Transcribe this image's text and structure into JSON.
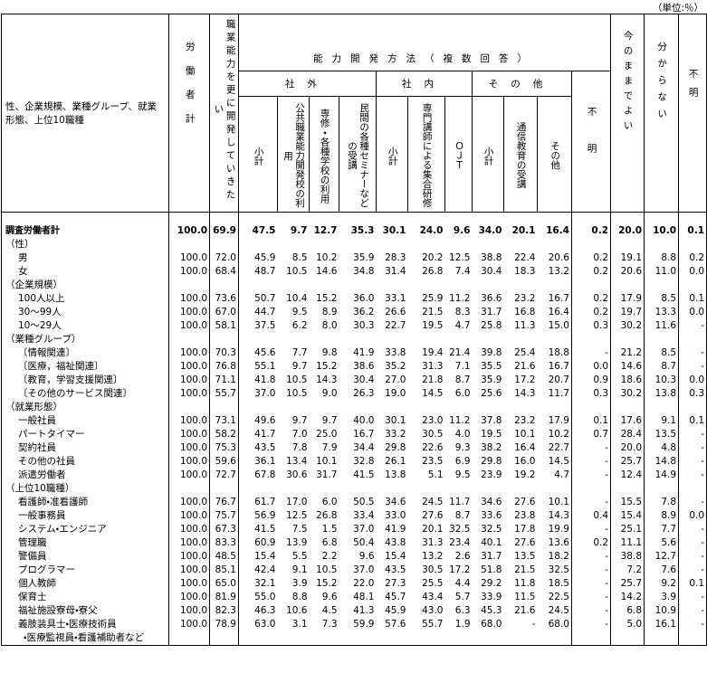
{
  "unit": "（単位:％）",
  "table": {
    "stub_header": "性、企業規模、業種グループ、就業形態、上位10職種",
    "group": "能力開発方法（複数回答）",
    "subgroups": [
      "社外",
      "社内",
      "その他"
    ],
    "columns": [
      "労働者計",
      "職業能力を更に開発していきたい",
      "小計",
      "公共職業能力開発校の利用",
      "専修・各種学校の利用",
      "民間の各種セミナーなどの受講",
      "小計",
      "専門講師による集合研修",
      "ＯＪＴ",
      "小計",
      "通信教育の受講",
      "その他",
      "不明",
      "今のままでよい",
      "分からない",
      "不明"
    ],
    "rows": [
      {
        "label": "調査労働者計",
        "values": [
          "100.0",
          "69.9",
          "47.5",
          "9.7",
          "12.7",
          "35.3",
          "30.1",
          "24.0",
          "9.6",
          "34.0",
          "20.1",
          "16.4",
          "0.2",
          "20.0",
          "10.0",
          "0.1"
        ]
      },
      {
        "label": "（性）"
      },
      {
        "label": "男",
        "values": [
          "100.0",
          "72.0",
          "45.9",
          "8.5",
          "10.2",
          "35.9",
          "28.3",
          "20.2",
          "12.5",
          "38.8",
          "22.4",
          "20.6",
          "0.2",
          "19.1",
          "8.8",
          "0.2"
        ]
      },
      {
        "label": "女",
        "values": [
          "100.0",
          "68.4",
          "48.7",
          "10.5",
          "14.6",
          "34.8",
          "31.4",
          "26.8",
          "7.4",
          "30.4",
          "18.3",
          "13.2",
          "0.2",
          "20.6",
          "11.0",
          "0.0"
        ]
      },
      {
        "label": "（企業規模）"
      },
      {
        "label": "100人以上",
        "values": [
          "100.0",
          "73.6",
          "50.7",
          "10.4",
          "15.2",
          "36.0",
          "33.1",
          "25.9",
          "11.2",
          "36.6",
          "23.2",
          "16.7",
          "0.2",
          "17.9",
          "8.5",
          "0.1"
        ]
      },
      {
        "label": "30～99人",
        "values": [
          "100.0",
          "67.0",
          "44.7",
          "9.5",
          "8.9",
          "36.2",
          "26.6",
          "21.5",
          "8.3",
          "31.7",
          "16.8",
          "16.4",
          "0.2",
          "19.7",
          "13.3",
          "0.0"
        ]
      },
      {
        "label": "10～29人",
        "values": [
          "100.0",
          "58.1",
          "37.5",
          "6.2",
          "8.0",
          "30.3",
          "22.7",
          "19.5",
          "4.7",
          "25.8",
          "11.3",
          "15.0",
          "0.3",
          "30.2",
          "11.6",
          "-"
        ]
      },
      {
        "label": "（業種グループ）"
      },
      {
        "label": "〔情報関連〕",
        "values": [
          "100.0",
          "70.3",
          "45.6",
          "7.7",
          "9.8",
          "41.9",
          "33.8",
          "19.4",
          "21.4",
          "39.8",
          "25.4",
          "18.8",
          "-",
          "21.2",
          "8.5",
          "-"
        ]
      },
      {
        "label": "〔医療，福祉関連〕",
        "values": [
          "100.0",
          "76.8",
          "55.1",
          "9.7",
          "15.2",
          "38.6",
          "35.2",
          "31.3",
          "7.1",
          "35.5",
          "21.6",
          "16.7",
          "0.0",
          "14.6",
          "8.7",
          "-"
        ]
      },
      {
        "label": "〔教育，学習支援関連〕",
        "values": [
          "100.0",
          "71.1",
          "41.8",
          "10.5",
          "14.3",
          "30.4",
          "27.0",
          "21.8",
          "8.7",
          "35.9",
          "17.2",
          "20.7",
          "0.9",
          "18.6",
          "10.3",
          "0.0"
        ]
      },
      {
        "label": "〔その他のサービス関連〕",
        "values": [
          "100.0",
          "55.7",
          "37.0",
          "10.5",
          "9.0",
          "26.3",
          "19.0",
          "14.5",
          "6.0",
          "25.6",
          "14.3",
          "11.7",
          "0.3",
          "30.2",
          "13.8",
          "0.3"
        ]
      },
      {
        "label": "（就業形態）"
      },
      {
        "label": "一般社員",
        "values": [
          "100.0",
          "73.1",
          "49.6",
          "9.7",
          "9.7",
          "40.0",
          "30.1",
          "23.0",
          "11.2",
          "37.8",
          "23.2",
          "17.9",
          "0.1",
          "17.6",
          "9.1",
          "0.1"
        ]
      },
      {
        "label": "パートタイマー",
        "values": [
          "100.0",
          "58.2",
          "41.7",
          "7.0",
          "25.0",
          "16.7",
          "33.2",
          "30.5",
          "4.0",
          "19.5",
          "10.1",
          "10.2",
          "0.7",
          "28.4",
          "13.5",
          "-"
        ]
      },
      {
        "label": "契約社員",
        "values": [
          "100.0",
          "75.3",
          "43.5",
          "7.8",
          "7.9",
          "34.4",
          "29.8",
          "22.6",
          "9.3",
          "38.2",
          "16.4",
          "22.7",
          "-",
          "20.0",
          "4.8",
          "-"
        ]
      },
      {
        "label": "その他の社員",
        "values": [
          "100.0",
          "59.6",
          "36.1",
          "13.4",
          "10.1",
          "32.8",
          "26.1",
          "23.5",
          "6.9",
          "29.8",
          "16.0",
          "14.5",
          "-",
          "25.7",
          "14.8",
          "-"
        ]
      },
      {
        "label": "派遣労働者",
        "values": [
          "100.0",
          "72.7",
          "67.8",
          "30.6",
          "31.7",
          "41.5",
          "13.8",
          "5.1",
          "9.5",
          "23.9",
          "19.2",
          "4.7",
          "-",
          "12.4",
          "14.9",
          "-"
        ]
      },
      {
        "label": "（上位10職種）"
      },
      {
        "label": "看護師・准看護師",
        "values": [
          "100.0",
          "76.7",
          "61.7",
          "17.0",
          "6.0",
          "50.5",
          "34.6",
          "24.5",
          "11.7",
          "34.6",
          "27.6",
          "10.1",
          "-",
          "15.5",
          "7.8",
          "-"
        ]
      },
      {
        "label": "一般事務員",
        "values": [
          "100.0",
          "75.7",
          "56.9",
          "12.5",
          "26.8",
          "33.4",
          "33.0",
          "27.6",
          "8.7",
          "33.6",
          "23.8",
          "14.3",
          "0.4",
          "15.4",
          "8.9",
          "0.0"
        ]
      },
      {
        "label": "システム・エンジニア",
        "values": [
          "100.0",
          "67.3",
          "41.5",
          "7.5",
          "1.5",
          "37.0",
          "41.9",
          "20.1",
          "32.5",
          "32.5",
          "17.8",
          "19.9",
          "-",
          "25.1",
          "7.7",
          "-"
        ]
      },
      {
        "label": "管理職",
        "values": [
          "100.0",
          "83.3",
          "60.9",
          "13.9",
          "6.8",
          "50.4",
          "43.8",
          "31.3",
          "23.4",
          "40.1",
          "27.6",
          "13.6",
          "0.2",
          "11.1",
          "5.6",
          "-"
        ]
      },
      {
        "label": "警備員",
        "values": [
          "100.0",
          "48.5",
          "15.4",
          "5.5",
          "2.2",
          "9.6",
          "15.4",
          "13.2",
          "2.6",
          "31.7",
          "13.5",
          "18.2",
          "-",
          "38.8",
          "12.7",
          "-"
        ]
      },
      {
        "label": "プログラマー",
        "values": [
          "100.0",
          "85.1",
          "42.4",
          "9.1",
          "10.5",
          "37.0",
          "43.5",
          "30.5",
          "17.2",
          "51.8",
          "21.5",
          "32.5",
          "-",
          "7.2",
          "7.6",
          "-"
        ]
      },
      {
        "label": "個人教師",
        "values": [
          "100.0",
          "65.0",
          "32.1",
          "3.9",
          "15.2",
          "22.0",
          "27.3",
          "25.5",
          "4.4",
          "29.2",
          "11.8",
          "18.5",
          "-",
          "25.7",
          "9.2",
          "0.1"
        ]
      },
      {
        "label": "保育士",
        "values": [
          "100.0",
          "81.9",
          "55.0",
          "8.8",
          "9.6",
          "48.1",
          "45.7",
          "43.4",
          "5.7",
          "33.9",
          "11.5",
          "22.5",
          "-",
          "14.2",
          "3.9",
          "-"
        ]
      },
      {
        "label": "福祉施設寮母・寮父",
        "values": [
          "100.0",
          "82.3",
          "46.3",
          "10.6",
          "4.5",
          "41.3",
          "45.9",
          "43.0",
          "6.3",
          "45.3",
          "21.6",
          "24.5",
          "-",
          "6.8",
          "10.9",
          "-"
        ]
      },
      {
        "label": [
          "義肢装具士・医療技術員",
          "・医療監視員・看護補助者など"
        ],
        "values": [
          "100.0",
          "78.9",
          "63.0",
          "3.1",
          "7.3",
          "59.9",
          "57.6",
          "55.7",
          "1.9",
          "68.0",
          "-",
          "68.0",
          "-",
          "5.0",
          "16.1",
          "-"
        ]
      }
    ]
  }
}
